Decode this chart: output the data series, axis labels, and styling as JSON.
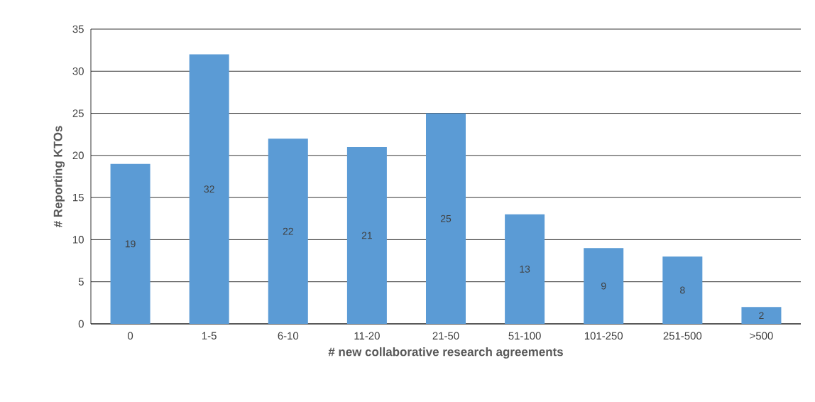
{
  "chart_data": {
    "type": "bar",
    "xlabel": "# new collaborative research agreements",
    "ylabel": "# Reporting KTOs",
    "categories": [
      "0",
      "1-5",
      "6-10",
      "11-20",
      "21-50",
      "51-100",
      "101-250",
      "251-500",
      ">500"
    ],
    "values": [
      19,
      32,
      22,
      21,
      25,
      13,
      9,
      8,
      2
    ],
    "color": "#5b9bd5",
    "ylim": [
      0,
      35
    ],
    "yticks": [
      0,
      5,
      10,
      15,
      20,
      25,
      30,
      35
    ],
    "grid": "y",
    "data_labels": true
  }
}
